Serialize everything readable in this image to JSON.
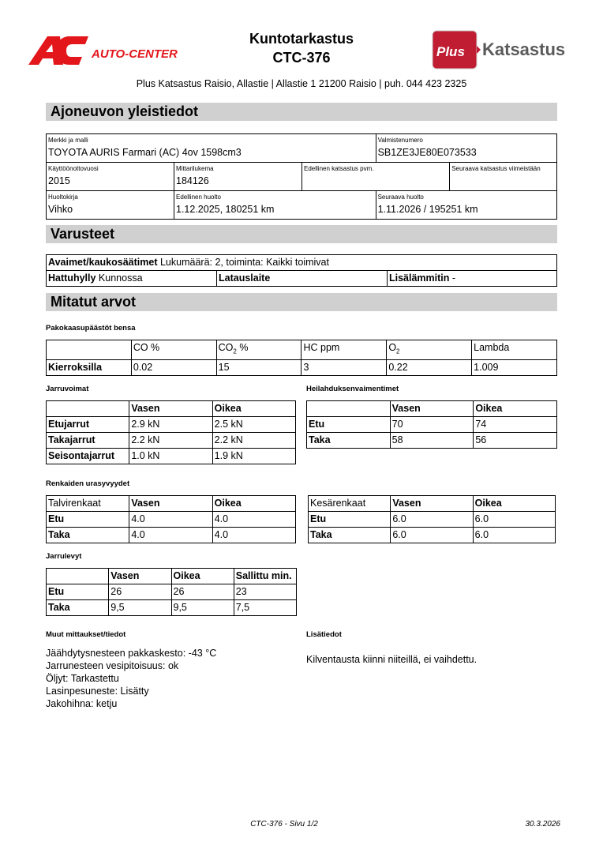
{
  "header": {
    "title": "Kuntotarkastus",
    "doc_id": "CTC-376",
    "address": "Plus Katsastus Raisio, Allastie | Allastie 1 21200 Raisio | puh. 044 423 2325",
    "logo_left": "AC AUTO-CENTER",
    "logo_right": "Plus Katsastus",
    "colors": {
      "autocenter_red": "#e3161b",
      "plus_red": "#c01c32",
      "katsastus_gray": "#5a5a5a"
    }
  },
  "general": {
    "heading": "Ajoneuvon yleistiedot",
    "make_label": "Merkki ja malli",
    "make": "TOYOTA AURIS Farmari (AC) 4ov 1598cm3",
    "vin_label": "Valmistenumero",
    "vin": "SB1ZE3JE80E073533",
    "year_label": "Käyttöönottovuosi",
    "year": "2015",
    "odo_label": "Mittarilukema",
    "odo": "184126",
    "prev_insp_label": "Edellinen katsastus pvm.",
    "next_insp_label": "Seuraava katsastus viimeistään",
    "book_label": "Huoltokirja",
    "book": "Vihko",
    "prev_service_label": "Edellinen huolto",
    "prev_service": "1.12.2025, 180251 km",
    "next_service_label": "Seuraava huolto",
    "next_service": "1.11.2026 / 195251 km"
  },
  "equipment": {
    "heading": "Varusteet",
    "keys_label": "Avaimet/kaukosäätimet",
    "keys": "Lukumäärä: 2, toiminta: Kaikki toimivat",
    "hatshelf_label": "Hattuhylly",
    "hatshelf": "Kunnossa",
    "charger_label": "Latauslaite",
    "heater_label": "Lisälämmitin",
    "heater": "-"
  },
  "measured": {
    "heading": "Mitatut arvot",
    "emissions": {
      "label": "Pakokaasupäästöt bensa",
      "headers": [
        "",
        "CO %",
        "CO",
        "2",
        " %",
        "HC ppm",
        "O",
        "2",
        "Lambda"
      ],
      "row_label": "Kierroksilla",
      "values": [
        "0.02",
        "15",
        "3",
        "0.22",
        "1.009"
      ]
    },
    "brakes": {
      "label": "Jarruvoimat",
      "headers": [
        "Vasen",
        "Oikea"
      ],
      "rows": [
        [
          "Etujarrut",
          "2.9 kN",
          "2.5 kN"
        ],
        [
          "Takajarrut",
          "2.2 kN",
          "2.2 kN"
        ],
        [
          "Seisontajarrut",
          "1.0 kN",
          "1.9 kN"
        ]
      ]
    },
    "shocks": {
      "label": "Heilahduksenvaimentimet",
      "headers": [
        "Vasen",
        "Oikea"
      ],
      "rows": [
        [
          "Etu",
          "70",
          "74"
        ],
        [
          "Taka",
          "58",
          "56"
        ]
      ]
    },
    "tires": {
      "label": "Renkaiden urasyvyydet",
      "winter": {
        "title": "Talvirenkaat",
        "headers": [
          "Vasen",
          "Oikea"
        ],
        "rows": [
          [
            "Etu",
            "4.0",
            "4.0"
          ],
          [
            "Taka",
            "4.0",
            "4.0"
          ]
        ]
      },
      "summer": {
        "title": "Kesärenkaat",
        "headers": [
          "Vasen",
          "Oikea"
        ],
        "rows": [
          [
            "Etu",
            "6.0",
            "6.0"
          ],
          [
            "Taka",
            "6.0",
            "6.0"
          ]
        ]
      }
    },
    "discs": {
      "label": "Jarrulevyt",
      "headers": [
        "Vasen",
        "Oikea",
        "Sallittu min."
      ],
      "rows": [
        [
          "Etu",
          "26",
          "26",
          "23"
        ],
        [
          "Taka",
          "9,5",
          "9,5",
          "7,5"
        ]
      ]
    },
    "other": {
      "label": "Muut mittaukset/tiedot",
      "lines": [
        "Jäähdytysnesteen pakkaskesto: -43 °C",
        "Jarrunesteen vesipitoisuus: ok",
        "Öljyt: Tarkastettu",
        "Lasinpesuneste: Lisätty",
        "Jakohihna: ketju"
      ]
    },
    "extra": {
      "label": "Lisätiedot",
      "text": "Kilventausta kiinni niiteillä, ei vaihdettu."
    }
  },
  "footer": {
    "page": "CTC-376 - Sivu 1/2",
    "date": "30.3.2026"
  }
}
